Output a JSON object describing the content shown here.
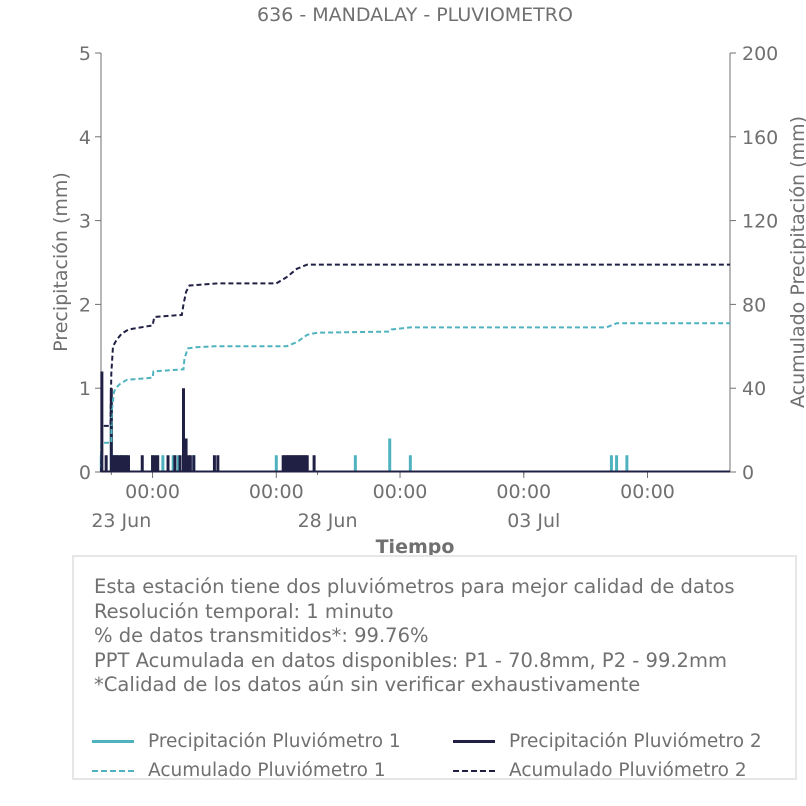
{
  "colors": {
    "p1": "#4fb3bf",
    "p2": "#1f2044",
    "axis": "#707070"
  },
  "chart_data": {
    "type": "line",
    "title": "636 - MANDALAY - PLUVIOMETRO",
    "xlabel": "Tiempo",
    "ylabel_left": "Precipitación (mm)",
    "ylabel_right": "Acumulado Precipitación (mm)",
    "ylim_left": [
      0,
      5
    ],
    "ylim_right": [
      0,
      200
    ],
    "yticks_left": [
      "0",
      "1",
      "2",
      "3",
      "4",
      "5"
    ],
    "yticks_right": [
      "0",
      "40",
      "80",
      "120",
      "160",
      "200"
    ],
    "xlim": [
      "2025-06-22T18:00",
      "2025-07-08T00:00"
    ],
    "x_time_labels": [
      {
        "t": "2025-06-24T00:00",
        "label": "00:00"
      },
      {
        "t": "2025-06-27T00:00",
        "label": "00:00"
      },
      {
        "t": "2025-06-30T00:00",
        "label": "00:00"
      },
      {
        "t": "2025-07-03T00:00",
        "label": "00:00"
      },
      {
        "t": "2025-07-06T00:00",
        "label": "00:00"
      }
    ],
    "x_date_labels": [
      {
        "t": "2025-06-23T00:00",
        "label": "23 Jun"
      },
      {
        "t": "2025-06-28T00:00",
        "label": "28 Jun"
      },
      {
        "t": "2025-07-03T00:00",
        "label": "03 Jul"
      }
    ],
    "grid": false,
    "legend_placement": "bottom",
    "series": [
      {
        "name": "Precipitación Pluviómetro 1",
        "kind": "bars",
        "axis": "left",
        "color": "#4fb3bf",
        "points": [
          [
            "2025-06-22T18:10",
            0.2
          ],
          [
            "2025-06-23T00:00",
            0.8
          ],
          [
            "2025-06-23T01:30",
            0.2
          ],
          [
            "2025-06-23T03:00",
            0.2
          ],
          [
            "2025-06-23T06:00",
            0.2
          ],
          [
            "2025-06-24T00:00",
            0.2
          ],
          [
            "2025-06-24T06:00",
            0.2
          ],
          [
            "2025-06-24T12:00",
            0.2
          ],
          [
            "2025-06-24T15:00",
            0.2
          ],
          [
            "2025-06-25T00:00",
            0.2
          ],
          [
            "2025-06-27T00:00",
            0.2
          ],
          [
            "2025-06-28T22:00",
            0.2
          ],
          [
            "2025-06-29T18:00",
            0.4
          ],
          [
            "2025-06-30T06:00",
            0.2
          ],
          [
            "2025-07-05T03:00",
            0.2
          ],
          [
            "2025-07-05T06:00",
            0.2
          ],
          [
            "2025-07-05T12:00",
            0.2
          ]
        ]
      },
      {
        "name": "Precipitación Pluviómetro 2",
        "kind": "bars",
        "axis": "left",
        "color": "#1f2044",
        "points": [
          [
            "2025-06-22T18:30",
            1.2
          ],
          [
            "2025-06-22T21:00",
            0.2
          ],
          [
            "2025-06-23T00:00",
            1.0
          ],
          [
            "2025-06-23T01:00",
            0.2
          ],
          [
            "2025-06-23T02:00",
            0.2
          ],
          [
            "2025-06-23T03:00",
            0.2
          ],
          [
            "2025-06-23T04:00",
            0.2
          ],
          [
            "2025-06-23T05:00",
            0.2
          ],
          [
            "2025-06-23T06:00",
            0.2
          ],
          [
            "2025-06-23T07:00",
            0.2
          ],
          [
            "2025-06-23T08:00",
            0.2
          ],
          [
            "2025-06-23T09:00",
            0.2
          ],
          [
            "2025-06-23T10:00",
            0.2
          ],
          [
            "2025-06-23T18:00",
            0.2
          ],
          [
            "2025-06-24T00:00",
            0.2
          ],
          [
            "2025-06-24T01:30",
            0.2
          ],
          [
            "2025-06-24T03:00",
            0.2
          ],
          [
            "2025-06-24T09:00",
            0.2
          ],
          [
            "2025-06-24T13:00",
            0.2
          ],
          [
            "2025-06-24T16:00",
            0.2
          ],
          [
            "2025-06-24T18:00",
            1.0
          ],
          [
            "2025-06-24T19:30",
            0.4
          ],
          [
            "2025-06-24T21:00",
            0.2
          ],
          [
            "2025-06-24T22:00",
            0.2
          ],
          [
            "2025-06-25T00:00",
            0.2
          ],
          [
            "2025-06-25T12:00",
            0.2
          ],
          [
            "2025-06-25T14:00",
            0.2
          ],
          [
            "2025-06-27T04:00",
            0.2
          ],
          [
            "2025-06-27T05:00",
            0.2
          ],
          [
            "2025-06-27T06:00",
            0.2
          ],
          [
            "2025-06-27T07:00",
            0.2
          ],
          [
            "2025-06-27T08:00",
            0.2
          ],
          [
            "2025-06-27T09:00",
            0.2
          ],
          [
            "2025-06-27T10:00",
            0.2
          ],
          [
            "2025-06-27T11:00",
            0.2
          ],
          [
            "2025-06-27T12:00",
            0.2
          ],
          [
            "2025-06-27T13:00",
            0.2
          ],
          [
            "2025-06-27T14:00",
            0.2
          ],
          [
            "2025-06-27T15:00",
            0.2
          ],
          [
            "2025-06-27T16:00",
            0.2
          ],
          [
            "2025-06-27T17:00",
            0.2
          ],
          [
            "2025-06-27T18:00",
            0.2
          ],
          [
            "2025-06-27T22:00",
            0.2
          ]
        ]
      },
      {
        "name": "Acumulado Pluviómetro 1",
        "kind": "line",
        "axis": "right",
        "color": "#4fb3bf",
        "dash": true,
        "points": [
          [
            "2025-06-22T18:00",
            0
          ],
          [
            "2025-06-22T18:10",
            14
          ],
          [
            "2025-06-23T00:00",
            14
          ],
          [
            "2025-06-23T00:10",
            28
          ],
          [
            "2025-06-23T01:30",
            38
          ],
          [
            "2025-06-23T02:30",
            40
          ],
          [
            "2025-06-23T05:00",
            42
          ],
          [
            "2025-06-23T09:00",
            44
          ],
          [
            "2025-06-24T00:00",
            45
          ],
          [
            "2025-06-24T00:30",
            48
          ],
          [
            "2025-06-24T18:00",
            49
          ],
          [
            "2025-06-24T18:30",
            54
          ],
          [
            "2025-06-24T20:30",
            59
          ],
          [
            "2025-06-25T01:00",
            59.5
          ],
          [
            "2025-06-25T12:00",
            60
          ],
          [
            "2025-06-27T06:00",
            60
          ],
          [
            "2025-06-27T12:00",
            62
          ],
          [
            "2025-06-27T18:00",
            65.5
          ],
          [
            "2025-06-28T00:00",
            66.5
          ],
          [
            "2025-06-29T18:00",
            67
          ],
          [
            "2025-06-29T19:00",
            68
          ],
          [
            "2025-06-30T06:00",
            69
          ],
          [
            "2025-07-05T00:00",
            69
          ],
          [
            "2025-07-05T06:00",
            71
          ],
          [
            "2025-07-08T00:00",
            71
          ]
        ]
      },
      {
        "name": "Acumulado Pluviómetro 2",
        "kind": "line",
        "axis": "right",
        "color": "#1f2044",
        "dash": true,
        "points": [
          [
            "2025-06-22T18:00",
            0
          ],
          [
            "2025-06-22T18:30",
            22
          ],
          [
            "2025-06-22T23:30",
            22
          ],
          [
            "2025-06-23T00:00",
            47
          ],
          [
            "2025-06-23T01:00",
            60
          ],
          [
            "2025-06-23T03:00",
            63
          ],
          [
            "2025-06-23T06:00",
            66
          ],
          [
            "2025-06-23T10:00",
            68
          ],
          [
            "2025-06-24T00:00",
            70
          ],
          [
            "2025-06-24T01:00",
            74
          ],
          [
            "2025-06-24T17:00",
            75
          ],
          [
            "2025-06-24T18:00",
            80
          ],
          [
            "2025-06-24T19:30",
            86
          ],
          [
            "2025-06-24T21:30",
            89
          ],
          [
            "2025-06-25T14:00",
            90
          ],
          [
            "2025-06-27T00:00",
            90
          ],
          [
            "2025-06-27T06:00",
            93
          ],
          [
            "2025-06-27T12:00",
            97
          ],
          [
            "2025-06-27T18:00",
            99
          ],
          [
            "2025-07-08T00:00",
            99
          ]
        ]
      }
    ]
  },
  "info": {
    "lines": [
      "Esta estación tiene dos pluviómetros para mejor calidad de datos",
      "Resolución temporal: 1 minuto",
      "% de datos transmitidos*: 99.76%",
      "PPT Acumulada en datos disponibles: P1 - 70.8mm, P2 - 99.2mm",
      "*Calidad de los datos aún sin verificar exhaustivamente"
    ]
  },
  "legend": {
    "items": [
      {
        "label": "Precipitación Pluviómetro 1",
        "color": "#4fb3bf",
        "style": "solid"
      },
      {
        "label": "Precipitación Pluviómetro 2",
        "color": "#1f2044",
        "style": "solid"
      },
      {
        "label": "Acumulado Pluviómetro 1",
        "color": "#4fb3bf",
        "style": "dashed"
      },
      {
        "label": "Acumulado Pluviómetro 2",
        "color": "#1f2044",
        "style": "dashed"
      }
    ]
  }
}
